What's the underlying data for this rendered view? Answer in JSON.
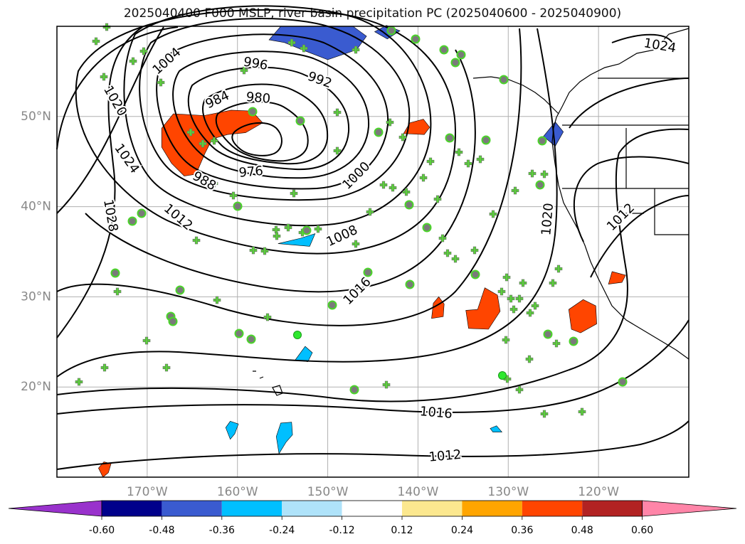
{
  "chart_data": {
    "type": "contour-map",
    "title": "2025040400 F000 MSLP, river basin precipitation PC (2025040600 - 2025040900)",
    "lon_range": [
      -180,
      -110
    ],
    "lat_range": [
      10,
      60
    ],
    "lat_ticks": [
      {
        "lat": 50,
        "label": "50°N"
      },
      {
        "lat": 40,
        "label": "40°N"
      },
      {
        "lat": 30,
        "label": "30°N"
      },
      {
        "lat": 20,
        "label": "20°N"
      }
    ],
    "lon_ticks": [
      {
        "lon": -170,
        "label": "170°W"
      },
      {
        "lon": -160,
        "label": "160°W"
      },
      {
        "lon": -150,
        "label": "150°W"
      },
      {
        "lon": -140,
        "label": "140°W"
      },
      {
        "lon": -130,
        "label": "130°W"
      },
      {
        "lon": -120,
        "label": "120°W"
      }
    ],
    "grid": true,
    "low_center": {
      "lon": -160,
      "lat": 47.5,
      "pressure": 976
    },
    "isobar_labels": [
      {
        "text": "1004",
        "lon": -167.8,
        "lat": 56.1,
        "rot": -42
      },
      {
        "text": "996",
        "lon": -158.0,
        "lat": 55.8,
        "rot": 10
      },
      {
        "text": "992",
        "lon": -150.9,
        "lat": 54.0,
        "rot": 20
      },
      {
        "text": "984",
        "lon": -162.2,
        "lat": 51.8,
        "rot": -25
      },
      {
        "text": "980",
        "lon": -157.7,
        "lat": 52.0,
        "rot": 5
      },
      {
        "text": "976",
        "lon": -158.5,
        "lat": 43.8,
        "rot": -5
      },
      {
        "text": "988",
        "lon": -163.7,
        "lat": 42.8,
        "rot": 30
      },
      {
        "text": "1000",
        "lon": -146.8,
        "lat": 43.4,
        "rot": -45
      },
      {
        "text": "1008",
        "lon": -148.4,
        "lat": 36.7,
        "rot": -25
      },
      {
        "text": "1016",
        "lon": -146.7,
        "lat": 30.6,
        "rot": -45
      },
      {
        "text": "1012",
        "lon": -166.6,
        "lat": 38.8,
        "rot": 40
      },
      {
        "text": "1020",
        "lon": -173.6,
        "lat": 51.7,
        "rot": 60
      },
      {
        "text": "1024",
        "lon": -172.3,
        "lat": 45.3,
        "rot": 55
      },
      {
        "text": "1028",
        "lon": -174.1,
        "lat": 39.0,
        "rot": 80
      },
      {
        "text": "1016",
        "lon": -138.0,
        "lat": 17.1,
        "rot": 5
      },
      {
        "text": "1012",
        "lon": -137.0,
        "lat": 12.3,
        "rot": -5
      },
      {
        "text": "1020",
        "lon": -125.6,
        "lat": 38.6,
        "rot": -85
      },
      {
        "text": "1012",
        "lon": -117.5,
        "lat": 38.8,
        "rot": -45
      },
      {
        "text": "1024",
        "lon": -113.2,
        "lat": 57.8,
        "rot": 10
      }
    ],
    "colorbar": {
      "ticks": [
        "-0.60",
        "-0.48",
        "-0.36",
        "-0.24",
        "-0.12",
        "0.12",
        "0.24",
        "0.36",
        "0.48",
        "0.60"
      ],
      "colors": [
        "#9932cc",
        "#00008b",
        "#3a5bd0",
        "#00bfff",
        "#afe3fa",
        "#ffffff",
        "#fce88f",
        "#ffa500",
        "#ff4500",
        "#b22222",
        "#ff85a8"
      ]
    },
    "precip_blobs": [
      {
        "value": 0.45,
        "points": [
          [
            -167.1,
            50.3
          ],
          [
            -163.7,
            50.1
          ],
          [
            -160.7,
            50.7
          ],
          [
            -158.4,
            50.6
          ],
          [
            -157.2,
            49.3
          ],
          [
            -159.1,
            48.2
          ],
          [
            -161.1,
            48.0
          ],
          [
            -162.8,
            47.5
          ],
          [
            -163.6,
            45.9
          ],
          [
            -164.6,
            43.6
          ],
          [
            -165.9,
            43.4
          ],
          [
            -167.3,
            44.8
          ],
          [
            -168.4,
            46.6
          ],
          [
            -168.4,
            48.7
          ]
        ]
      },
      {
        "value": 0.45,
        "points": [
          [
            -139.3,
            48.0
          ],
          [
            -138.7,
            48.8
          ],
          [
            -139.4,
            49.7
          ],
          [
            -140.9,
            49.3
          ],
          [
            -141.6,
            48.1
          ]
        ]
      },
      {
        "value": 0.45,
        "points": [
          [
            -138.3,
            29.3
          ],
          [
            -137.7,
            30.0
          ],
          [
            -137.1,
            29.2
          ],
          [
            -137.2,
            27.8
          ],
          [
            -138.5,
            27.6
          ]
        ]
      },
      {
        "value": 0.45,
        "points": [
          [
            -133.4,
            28.6
          ],
          [
            -132.6,
            31.0
          ],
          [
            -131.2,
            30.2
          ],
          [
            -130.9,
            28.4
          ],
          [
            -132.2,
            26.4
          ],
          [
            -134.4,
            26.5
          ],
          [
            -134.7,
            28.5
          ]
        ]
      },
      {
        "value": 0.45,
        "points": [
          [
            -122.0,
            26.0
          ],
          [
            -120.2,
            27.0
          ],
          [
            -120.3,
            29.0
          ],
          [
            -121.7,
            29.7
          ],
          [
            -123.3,
            28.6
          ],
          [
            -123.0,
            26.4
          ]
        ]
      },
      {
        "value": 0.45,
        "points": [
          [
            -118.9,
            31.4
          ],
          [
            -117.4,
            31.6
          ],
          [
            -117.0,
            32.4
          ],
          [
            -118.5,
            32.8
          ]
        ]
      },
      {
        "value": 0.4,
        "points": [
          [
            -174.9,
            10.0
          ],
          [
            -174.3,
            10.5
          ],
          [
            -174.0,
            11.5
          ],
          [
            -174.8,
            11.7
          ],
          [
            -175.4,
            11.0
          ]
        ]
      },
      {
        "value": -0.4,
        "points": [
          [
            -155.2,
            60.0
          ],
          [
            -147.2,
            60.0
          ],
          [
            -145.7,
            58.9
          ],
          [
            -146.8,
            57.4
          ],
          [
            -150.0,
            56.3
          ],
          [
            -152.6,
            57.3
          ],
          [
            -154.8,
            58.2
          ],
          [
            -156.5,
            58.5
          ]
        ]
      },
      {
        "value": -0.4,
        "points": [
          [
            -143.5,
            60.1
          ],
          [
            -142.0,
            59.5
          ],
          [
            -143.4,
            58.6
          ],
          [
            -144.8,
            59.4
          ]
        ]
      },
      {
        "value": -0.4,
        "points": [
          [
            -126.1,
            47.8
          ],
          [
            -124.8,
            49.4
          ],
          [
            -123.9,
            48.3
          ],
          [
            -124.8,
            46.7
          ]
        ]
      },
      {
        "value": -0.3,
        "points": [
          [
            -155.5,
            35.9
          ],
          [
            -153.0,
            36.5
          ],
          [
            -151.4,
            37.0
          ],
          [
            -152.0,
            35.6
          ]
        ]
      },
      {
        "value": -0.3,
        "points": [
          [
            -152.5,
            24.5
          ],
          [
            -151.7,
            23.8
          ],
          [
            -152.2,
            22.8
          ],
          [
            -153.6,
            23.0
          ]
        ]
      },
      {
        "value": -0.3,
        "points": [
          [
            -160.8,
            14.2
          ],
          [
            -160.3,
            14.8
          ],
          [
            -159.9,
            15.9
          ],
          [
            -160.8,
            16.2
          ],
          [
            -161.3,
            15.5
          ]
        ]
      },
      {
        "value": -0.3,
        "points": [
          [
            -155.4,
            12.6
          ],
          [
            -155.7,
            14.5
          ],
          [
            -155.2,
            16.0
          ],
          [
            -154.0,
            16.1
          ],
          [
            -153.9,
            14.7
          ],
          [
            -154.6,
            13.9
          ]
        ]
      },
      {
        "value": -0.3,
        "points": [
          [
            -131.7,
            15.0
          ],
          [
            -130.7,
            15.0
          ],
          [
            -131.3,
            15.7
          ],
          [
            -132.0,
            15.4
          ]
        ]
      }
    ]
  }
}
